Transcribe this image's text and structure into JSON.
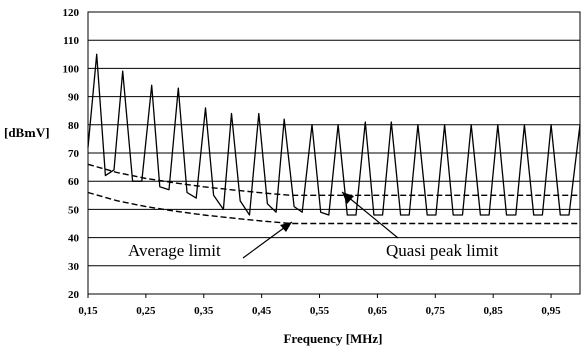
{
  "chart_data": {
    "type": "line",
    "title": "",
    "xlabel": "Frequency [MHz]",
    "ylabel": "[dBmV]",
    "ylabel_prefix": "[dB",
    "ylabel_mu": "m",
    "ylabel_suffix": "V]",
    "xlim": [
      0.15,
      1.0
    ],
    "ylim": [
      20,
      120
    ],
    "grid": "horizontal",
    "x_ticks": [
      0.15,
      0.25,
      0.35,
      0.45,
      0.55,
      0.65,
      0.75,
      0.85,
      0.95
    ],
    "x_tick_labels": [
      "0,15",
      "0,25",
      "0,35",
      "0,45",
      "0,55",
      "0,65",
      "0,75",
      "0,85",
      "0,95"
    ],
    "y_ticks": [
      20,
      30,
      40,
      50,
      60,
      70,
      80,
      90,
      100,
      110,
      120
    ],
    "y_tick_labels": [
      "20",
      "30",
      "40",
      "50",
      "60",
      "70",
      "80",
      "90",
      "100",
      "110",
      "120"
    ],
    "series": [
      {
        "style": "solid",
        "x": [
          0.15,
          0.165,
          0.18,
          0.195,
          0.21,
          0.227,
          0.243,
          0.26,
          0.274,
          0.29,
          0.306,
          0.321,
          0.337,
          0.353,
          0.367,
          0.384,
          0.398,
          0.413,
          0.429,
          0.445,
          0.46,
          0.475,
          0.489,
          0.506,
          0.52,
          0.537,
          0.552,
          0.566,
          0.582,
          0.598,
          0.613,
          0.629,
          0.644,
          0.659,
          0.674,
          0.69,
          0.705,
          0.72,
          0.736,
          0.751,
          0.766,
          0.781,
          0.797,
          0.812,
          0.828,
          0.843,
          0.858,
          0.873,
          0.889,
          0.904,
          0.92,
          0.935,
          0.95,
          0.966,
          0.981,
          1.0
        ],
        "y": [
          72,
          105,
          62,
          64,
          99,
          60,
          60,
          94,
          58,
          57,
          93,
          56,
          54,
          86,
          55,
          50,
          84,
          53,
          48,
          84,
          52,
          49,
          82,
          51,
          49,
          80,
          49,
          48,
          80,
          48,
          48,
          81,
          48,
          48,
          81,
          48,
          48,
          80,
          48,
          48,
          80,
          48,
          48,
          80,
          48,
          48,
          80,
          48,
          48,
          80,
          48,
          48,
          80,
          48,
          48,
          80
        ]
      },
      {
        "name": "Quasi peak limit",
        "style": "dashed",
        "x": [
          0.15,
          0.2,
          0.25,
          0.3,
          0.35,
          0.4,
          0.45,
          0.5,
          0.55,
          0.6,
          0.65,
          0.7,
          0.75,
          0.8,
          0.85,
          0.9,
          0.95,
          1.0
        ],
        "y": [
          66,
          63.1,
          61.0,
          59.4,
          58.0,
          56.9,
          55.9,
          55.0,
          55,
          55,
          55,
          55,
          55,
          55,
          55,
          55,
          55,
          55
        ]
      },
      {
        "name": "Average limit",
        "style": "dashed",
        "x": [
          0.15,
          0.2,
          0.25,
          0.3,
          0.35,
          0.4,
          0.45,
          0.5,
          0.55,
          0.6,
          0.65,
          0.7,
          0.75,
          0.8,
          0.85,
          0.9,
          0.95,
          1.0
        ],
        "y": [
          56,
          53.1,
          51.0,
          49.4,
          48.0,
          46.9,
          45.9,
          45.0,
          45,
          45,
          45,
          45,
          45,
          45,
          45,
          45,
          45,
          45
        ]
      }
    ],
    "annotations": [
      {
        "text": "Average limit",
        "points_to": "Average limit"
      },
      {
        "text": "Quasi peak limit",
        "points_to": "Quasi peak limit"
      }
    ]
  }
}
